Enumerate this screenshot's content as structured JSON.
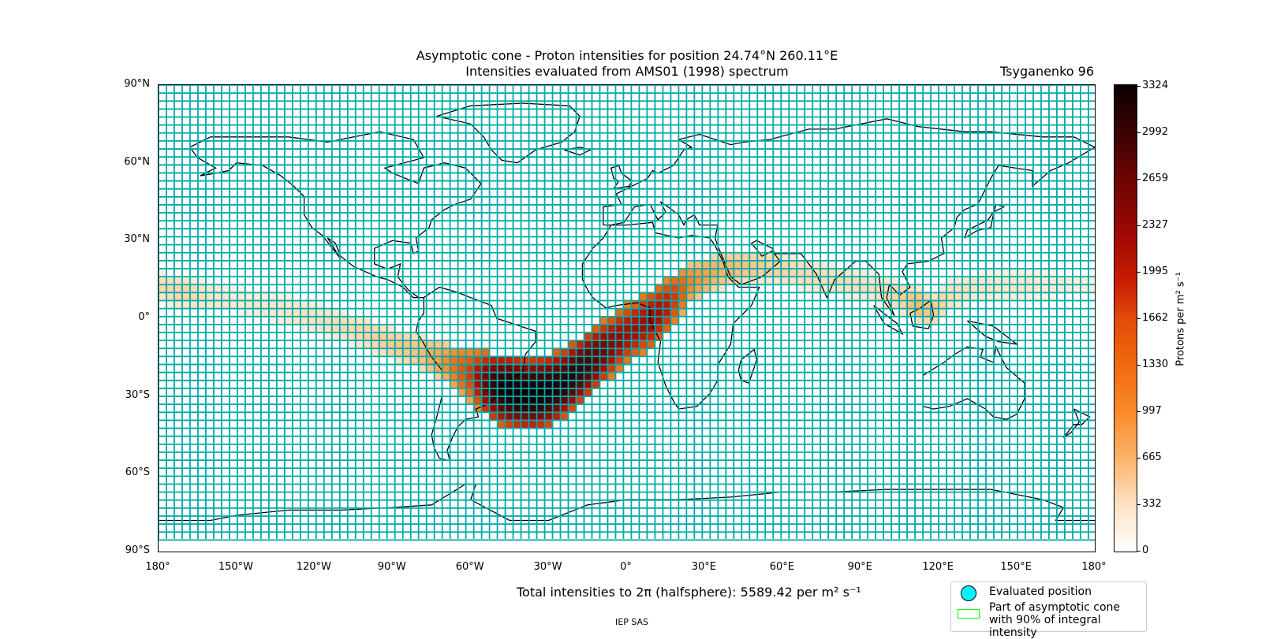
{
  "title_line1": "Asymptotic cone - Proton intensities for position 24.74°N 260.11°E",
  "title_line2": "Intensities evaluated from AMS01 (1998) spectrum",
  "model": "Tsyganenko 96",
  "lat_ticks": [
    "90°N",
    "60°N",
    "30°N",
    "0°",
    "30°S",
    "60°S",
    "90°S"
  ],
  "lon_ticks": [
    "180°",
    "150°W",
    "120°W",
    "90°W",
    "60°W",
    "30°W",
    "0°",
    "30°E",
    "60°E",
    "90°E",
    "120°E",
    "150°E",
    "180°"
  ],
  "colorbar": {
    "label": "Protons per m² s⁻¹",
    "ticks": [
      "0",
      "332",
      "665",
      "997",
      "1330",
      "1662",
      "1995",
      "2327",
      "2659",
      "2992",
      "3324"
    ]
  },
  "total_intensity": "Total intensities to 2π (halfsphere): 5589.42 per m² s⁻¹",
  "credit": "IEP SAS",
  "legend": {
    "evaluated_position": "Evaluated position",
    "cone_90": "Part of asymptotic cone with 90% of integral intensity"
  },
  "colors": {
    "grid": "#00a8a8",
    "coast": "#000000",
    "cone_outline": "#00ff00",
    "marker": "#00f5ff"
  }
}
